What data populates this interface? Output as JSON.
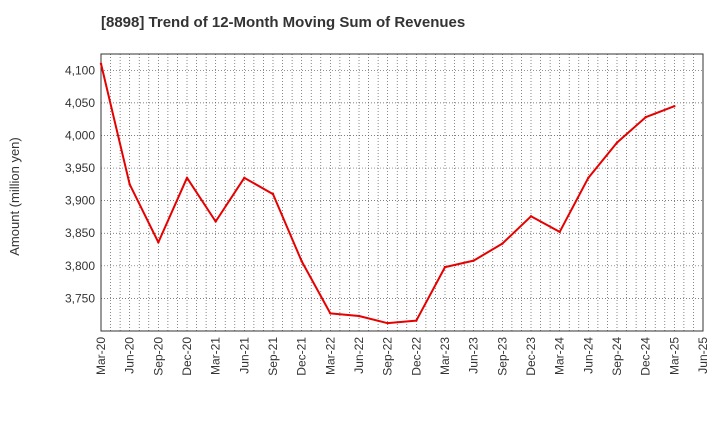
{
  "chart_data": {
    "type": "line",
    "title": "[8898]  Trend of 12-Month Moving Sum of Revenues",
    "xlabel": "",
    "ylabel": "Amount (million yen)",
    "ylim": [
      3700,
      4125
    ],
    "y_ticks": [
      3750,
      3800,
      3850,
      3900,
      3950,
      4000,
      4050,
      4100
    ],
    "y_tick_labels": [
      "3,750",
      "3,800",
      "3,850",
      "3,900",
      "3,950",
      "4,000",
      "4,050",
      "4,100"
    ],
    "x_tick_labels": [
      "Mar-20",
      "Jun-20",
      "Sep-20",
      "Dec-20",
      "Mar-21",
      "Jun-21",
      "Sep-21",
      "Dec-21",
      "Mar-22",
      "Jun-22",
      "Sep-22",
      "Dec-22",
      "Mar-23",
      "Jun-23",
      "Sep-23",
      "Dec-23",
      "Mar-24",
      "Jun-24",
      "Sep-24",
      "Dec-24",
      "Mar-25",
      "Jun-25"
    ],
    "grid": true,
    "line_color": "#e60000",
    "series": [
      {
        "x": [
          "Mar-20",
          "Jun-20",
          "Sep-20",
          "Dec-20",
          "Mar-21",
          "Jun-21",
          "Sep-21",
          "Dec-21",
          "Mar-22",
          "Jun-22",
          "Sep-22",
          "Dec-22",
          "Mar-23",
          "Jun-23",
          "Sep-23",
          "Dec-23",
          "Mar-24",
          "Jun-24",
          "Sep-24",
          "Dec-24",
          "Mar-25"
        ],
        "values": [
          4110,
          3925,
          3836,
          3935,
          3868,
          3935,
          3910,
          3807,
          3727,
          3723,
          3712,
          3716,
          3798,
          3808,
          3834,
          3876,
          3852,
          3935,
          3989,
          4028,
          4045
        ]
      }
    ]
  }
}
